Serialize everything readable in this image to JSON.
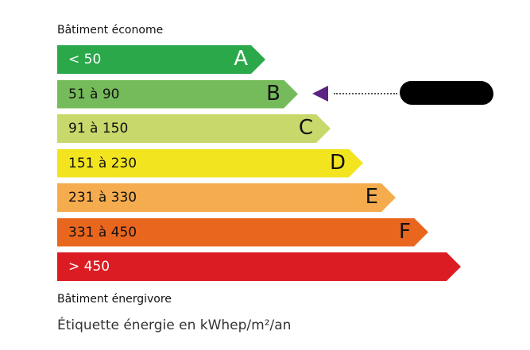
{
  "top_label": "Bâtiment économe",
  "bottom_label": "Bâtiment énergivore",
  "caption": "Étiquette énergie en kWhep/m²/an",
  "classes": [
    {
      "letter": "A",
      "range": "< 50",
      "color": "#2aa84a",
      "text_color": "#ffffff"
    },
    {
      "letter": "B",
      "range": "51 à 90",
      "color": "#76bb5b",
      "text_color": "#111111"
    },
    {
      "letter": "C",
      "range": "91 à 150",
      "color": "#c8d86a",
      "text_color": "#111111"
    },
    {
      "letter": "D",
      "range": "151 à 230",
      "color": "#f2e520",
      "text_color": "#111111"
    },
    {
      "letter": "E",
      "range": "231 à 330",
      "color": "#f5ac4e",
      "text_color": "#111111"
    },
    {
      "letter": "F",
      "range": "331 à 450",
      "color": "#e9661e",
      "text_color": "#111111"
    },
    {
      "letter": "",
      "range": "> 450",
      "color": "#dc1c23",
      "text_color": "#ffffff"
    }
  ],
  "indicator": {
    "class": "B",
    "color": "#5b2383"
  }
}
